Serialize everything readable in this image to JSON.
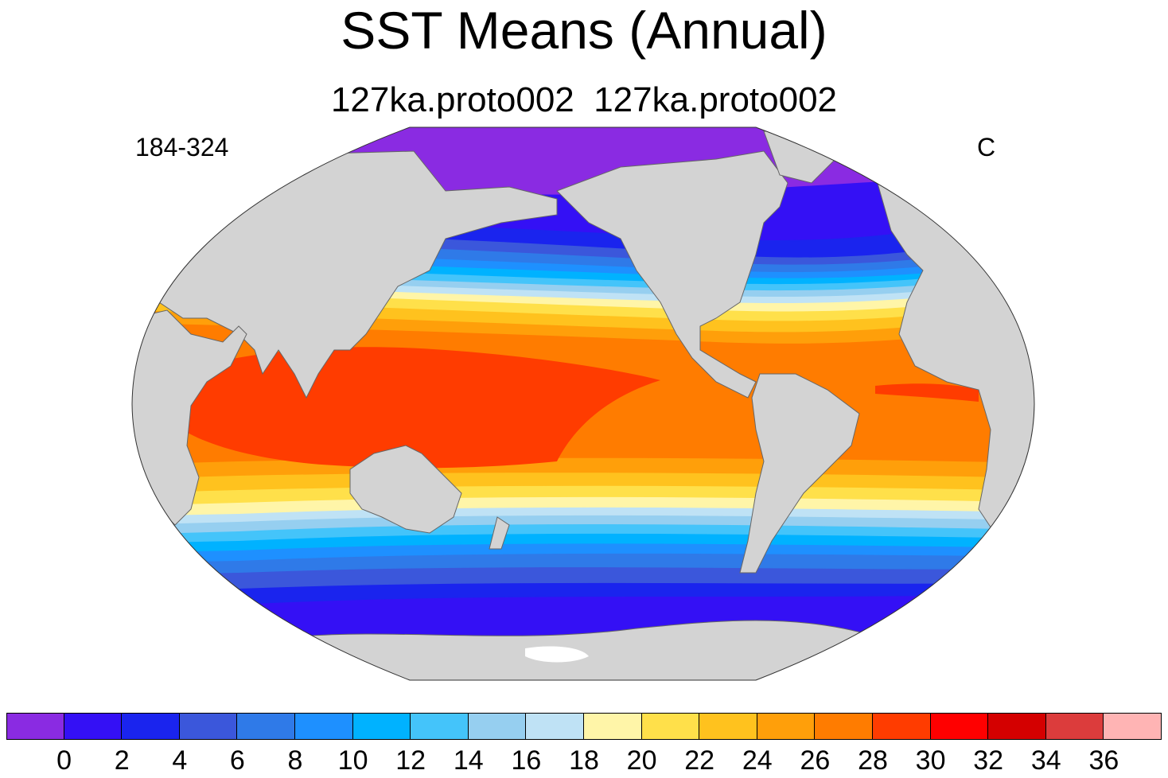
{
  "title": "SST Means (Annual)",
  "subtitle": "127ka.proto002  127ka.proto002",
  "left_string": "184-324",
  "right_string": "C",
  "map": {
    "projection": "Robinson",
    "field": "SST",
    "land_color": "#d3d3d3",
    "missing_color": "#ffffff"
  },
  "colorbar": {
    "colors": [
      "#8a2be2",
      "#3410f5",
      "#1a24ee",
      "#3b57db",
      "#2f7ae8",
      "#1e90ff",
      "#00b2ff",
      "#44c4fa",
      "#96cff0",
      "#bfe2f5",
      "#fff5a8",
      "#ffe04a",
      "#ffc21e",
      "#ff9f0a",
      "#ff7c00",
      "#ff3c00",
      "#ff0000",
      "#d40000",
      "#dc3c3c",
      "#ffb4b4"
    ],
    "labels": [
      "0",
      "2",
      "4",
      "6",
      "8",
      "10",
      "12",
      "14",
      "16",
      "18",
      "20",
      "22",
      "24",
      "26",
      "28",
      "30",
      "32",
      "34",
      "36"
    ]
  }
}
